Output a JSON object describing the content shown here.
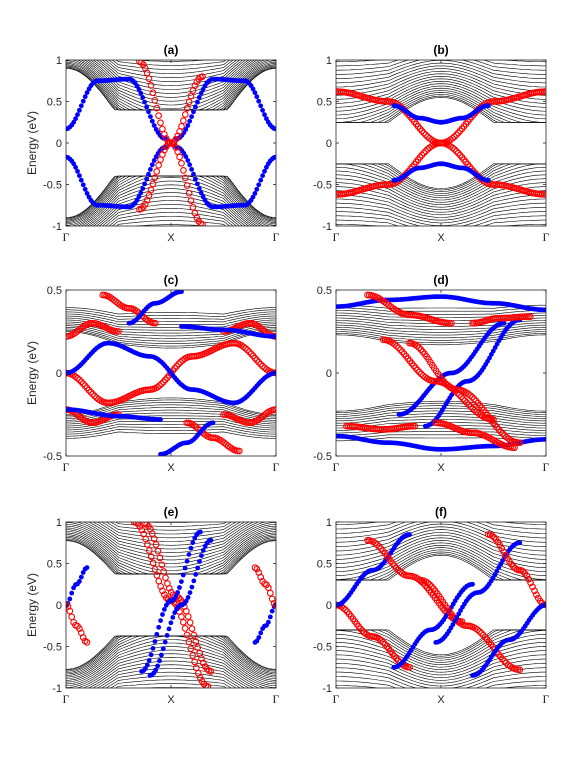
{
  "figure": {
    "chart_data": [
      {
        "type": "line",
        "panel": "(a)",
        "title": "(a)",
        "xlabel": "",
        "ylabel": "Energy (eV)",
        "xticks": [
          "Γ",
          "X",
          "Γ"
        ],
        "xlim": [
          0,
          2
        ],
        "ylim": [
          -1,
          1
        ],
        "yticks": [
          "-1",
          "-0.5",
          "0",
          "0.5",
          "1"
        ],
        "bulk": {
          "center": 0.35,
          "gap": 0.9,
          "bands": 26,
          "spread": 0.8,
          "shape": 0.45,
          "dip": 0.25
        },
        "series": [
          {
            "color": "#0000ff",
            "marker": "filled",
            "x": [
              0,
              0.3,
              0.6,
              0.95
            ],
            "y": [
              0.17,
              0.75,
              0.77,
              0.05
            ]
          },
          {
            "color": "#0000ff",
            "marker": "filled",
            "x": [
              1.05,
              1.4,
              1.7,
              2
            ],
            "y": [
              0.05,
              0.77,
              0.75,
              0.17
            ]
          },
          {
            "color": "#0000ff",
            "marker": "filled",
            "x": [
              0,
              0.3,
              0.6,
              0.95
            ],
            "y": [
              -0.17,
              -0.75,
              -0.77,
              -0.05
            ]
          },
          {
            "color": "#0000ff",
            "marker": "filled",
            "x": [
              1.05,
              1.4,
              1.7,
              2
            ],
            "y": [
              -0.05,
              -0.77,
              -0.75,
              -0.17
            ]
          },
          {
            "color": "#ff0000",
            "marker": "open",
            "x": [
              0.7,
              1.0,
              1.3
            ],
            "y": [
              0.98,
              0.0,
              -0.98
            ]
          },
          {
            "color": "#ff0000",
            "marker": "open",
            "x": [
              0.7,
              1.0,
              1.3
            ],
            "y": [
              -0.8,
              0.0,
              0.8
            ]
          }
        ]
      },
      {
        "type": "line",
        "panel": "(b)",
        "title": "(b)",
        "xlabel": "",
        "ylabel": "",
        "xticks": [
          "Γ",
          "X",
          "Γ"
        ],
        "xlim": [
          0,
          2
        ],
        "ylim": [
          -1,
          1
        ],
        "yticks": [
          "-1",
          "-0.5",
          "0",
          "0.5",
          "1"
        ],
        "bulk": {
          "center": 0.25,
          "gap": 0.6,
          "bands": 22,
          "spread": 0.8,
          "shape": -0.25,
          "dip": 0.1
        },
        "series": [
          {
            "color": "#ff0000",
            "marker": "open",
            "x": [
              0,
              0.5,
              1.0,
              1.5,
              2
            ],
            "y": [
              0.62,
              0.5,
              0.0,
              -0.5,
              -0.62
            ]
          },
          {
            "color": "#ff0000",
            "marker": "open",
            "x": [
              0,
              0.5,
              1.0,
              1.5,
              2
            ],
            "y": [
              -0.62,
              -0.5,
              0.0,
              0.5,
              0.62
            ]
          },
          {
            "color": "#0000ff",
            "marker": "filled",
            "x": [
              0.55,
              0.8,
              1.0
            ],
            "y": [
              0.45,
              0.3,
              0.25
            ]
          },
          {
            "color": "#0000ff",
            "marker": "filled",
            "x": [
              0.55,
              0.8,
              1.0
            ],
            "y": [
              -0.45,
              -0.3,
              -0.25
            ]
          },
          {
            "color": "#0000ff",
            "marker": "filled",
            "x": [
              1.0,
              1.2,
              1.45
            ],
            "y": [
              0.25,
              0.3,
              0.45
            ]
          },
          {
            "color": "#0000ff",
            "marker": "filled",
            "x": [
              1.0,
              1.2,
              1.45
            ],
            "y": [
              -0.25,
              -0.3,
              -0.45
            ]
          }
        ]
      },
      {
        "type": "line",
        "panel": "(c)",
        "title": "(c)",
        "xlabel": "",
        "ylabel": "Energy (eV)",
        "xticks": [
          "Γ",
          "X",
          "Γ"
        ],
        "xlim": [
          0,
          2
        ],
        "ylim": [
          -0.5,
          0.5
        ],
        "yticks": [
          "-0.5",
          "0",
          "0.5"
        ],
        "bulk": {
          "center": 0.3,
          "gap": 0.4,
          "bands": 14,
          "spread": 0.18,
          "shape": 0.05,
          "dip": 0.05
        },
        "series": [
          {
            "color": "#ff0000",
            "marker": "open",
            "x": [
              0,
              0.4,
              0.8,
              1.2,
              1.6,
              2
            ],
            "y": [
              0.0,
              -0.18,
              -0.1,
              0.1,
              0.18,
              0.0
            ]
          },
          {
            "color": "#ff0000",
            "marker": "open",
            "x": [
              0,
              0.25,
              0.5
            ],
            "y": [
              0.22,
              0.3,
              0.25
            ]
          },
          {
            "color": "#ff0000",
            "marker": "open",
            "x": [
              1.5,
              1.75,
              2
            ],
            "y": [
              0.25,
              0.3,
              0.22
            ]
          },
          {
            "color": "#ff0000",
            "marker": "open",
            "x": [
              0,
              0.25,
              0.5
            ],
            "y": [
              -0.22,
              -0.3,
              -0.25
            ]
          },
          {
            "color": "#ff0000",
            "marker": "open",
            "x": [
              1.5,
              1.75,
              2
            ],
            "y": [
              -0.25,
              -0.3,
              -0.22
            ]
          },
          {
            "color": "#ff0000",
            "marker": "open",
            "x": [
              0.35,
              0.6,
              0.85
            ],
            "y": [
              0.47,
              0.39,
              0.3
            ]
          },
          {
            "color": "#ff0000",
            "marker": "open",
            "x": [
              1.15,
              1.4,
              1.65
            ],
            "y": [
              -0.3,
              -0.39,
              -0.47
            ]
          },
          {
            "color": "#0000ff",
            "marker": "filled",
            "x": [
              0,
              0.4,
              0.8,
              1.2,
              1.6,
              2
            ],
            "y": [
              0.0,
              0.18,
              0.1,
              -0.1,
              -0.18,
              0.0
            ]
          },
          {
            "color": "#0000ff",
            "marker": "filled",
            "x": [
              0.6,
              0.85,
              1.1
            ],
            "y": [
              0.3,
              0.42,
              0.49
            ]
          },
          {
            "color": "#0000ff",
            "marker": "filled",
            "x": [
              0.9,
              1.15,
              1.4
            ],
            "y": [
              -0.49,
              -0.42,
              -0.3
            ]
          },
          {
            "color": "#0000ff",
            "marker": "filled",
            "x": [
              1.1,
              1.5,
              2
            ],
            "y": [
              0.28,
              0.26,
              0.22
            ]
          },
          {
            "color": "#0000ff",
            "marker": "filled",
            "x": [
              0,
              0.5,
              0.9
            ],
            "y": [
              -0.22,
              -0.26,
              -0.28
            ]
          }
        ]
      },
      {
        "type": "line",
        "panel": "(d)",
        "title": "(d)",
        "xlabel": "",
        "ylabel": "",
        "xticks": [
          "Γ",
          "X",
          "Γ"
        ],
        "xlim": [
          0,
          2
        ],
        "ylim": [
          -0.5,
          0.5
        ],
        "yticks": [
          "-0.5",
          "0",
          "0.5"
        ],
        "bulk": {
          "center": 0.3,
          "gap": 0.4,
          "bands": 14,
          "spread": 0.2,
          "shape": 0.03,
          "dip": 0.02
        },
        "series": [
          {
            "color": "#0000ff",
            "marker": "filled",
            "x": [
              0,
              0.5,
              1.0,
              1.5,
              2
            ],
            "y": [
              0.4,
              0.44,
              0.46,
              0.42,
              0.38
            ]
          },
          {
            "color": "#0000ff",
            "marker": "filled",
            "x": [
              0,
              0.5,
              1.0,
              1.5,
              2
            ],
            "y": [
              -0.38,
              -0.42,
              -0.46,
              -0.44,
              -0.4
            ]
          },
          {
            "color": "#0000ff",
            "marker": "filled",
            "x": [
              0.6,
              1.1,
              1.6
            ],
            "y": [
              -0.25,
              0.0,
              0.3
            ]
          },
          {
            "color": "#0000ff",
            "marker": "filled",
            "x": [
              0.85,
              1.25,
              1.75
            ],
            "y": [
              -0.32,
              -0.05,
              0.32
            ]
          },
          {
            "color": "#ff0000",
            "marker": "open",
            "x": [
              0.45,
              0.95,
              1.5
            ],
            "y": [
              0.2,
              -0.05,
              -0.28
            ]
          },
          {
            "color": "#ff0000",
            "marker": "open",
            "x": [
              0.7,
              1.15,
              1.75
            ],
            "y": [
              0.18,
              -0.1,
              -0.42
            ]
          },
          {
            "color": "#ff0000",
            "marker": "open",
            "x": [
              0.3,
              0.7,
              1.1
            ],
            "y": [
              0.47,
              0.35,
              0.3
            ]
          },
          {
            "color": "#ff0000",
            "marker": "open",
            "x": [
              1.3,
              1.55,
              1.85
            ],
            "y": [
              0.3,
              0.33,
              0.34
            ]
          },
          {
            "color": "#ff0000",
            "marker": "open",
            "x": [
              0.1,
              0.45,
              0.75
            ],
            "y": [
              -0.32,
              -0.34,
              -0.32
            ]
          },
          {
            "color": "#ff0000",
            "marker": "open",
            "x": [
              0.95,
              1.3,
              1.7
            ],
            "y": [
              -0.3,
              -0.36,
              -0.45
            ]
          }
        ]
      },
      {
        "type": "line",
        "panel": "(e)",
        "title": "(e)",
        "xlabel": "",
        "ylabel": "Energy (eV)",
        "xticks": [
          "Γ",
          "X",
          "Γ"
        ],
        "xlim": [
          0,
          2
        ],
        "ylim": [
          -1,
          1
        ],
        "yticks": [
          "-1",
          "-0.5",
          "0",
          "0.5",
          "1"
        ],
        "bulk": {
          "center": 0.35,
          "gap": 0.85,
          "bands": 26,
          "spread": 0.8,
          "shape": 0.35,
          "dip": 0.2
        },
        "series": [
          {
            "color": "#0000ff",
            "marker": "filled",
            "x": [
              0,
              0.1,
              0.2
            ],
            "y": [
              0.0,
              0.25,
              0.45
            ]
          },
          {
            "color": "#ff0000",
            "marker": "open",
            "x": [
              0,
              0.1,
              0.2
            ],
            "y": [
              0.0,
              -0.25,
              -0.45
            ]
          },
          {
            "color": "#0000ff",
            "marker": "filled",
            "x": [
              1.8,
              1.9,
              2
            ],
            "y": [
              -0.45,
              -0.25,
              0.0
            ]
          },
          {
            "color": "#ff0000",
            "marker": "open",
            "x": [
              1.8,
              1.9,
              2
            ],
            "y": [
              0.45,
              0.25,
              0.0
            ]
          },
          {
            "color": "#ff0000",
            "marker": "open",
            "x": [
              0.65,
              1.0,
              1.35
            ],
            "y": [
              1.0,
              0.05,
              -0.98
            ]
          },
          {
            "color": "#ff0000",
            "marker": "open",
            "x": [
              0.75,
              1.05,
              1.38
            ],
            "y": [
              0.98,
              0.1,
              -0.8
            ]
          },
          {
            "color": "#0000ff",
            "marker": "filled",
            "x": [
              0.72,
              1.0,
              1.28
            ],
            "y": [
              -0.8,
              0.05,
              0.88
            ]
          },
          {
            "color": "#0000ff",
            "marker": "filled",
            "x": [
              0.8,
              1.1,
              1.38
            ],
            "y": [
              -0.85,
              0.0,
              0.78
            ]
          }
        ]
      },
      {
        "type": "line",
        "panel": "(f)",
        "title": "(f)",
        "xlabel": "",
        "ylabel": "",
        "xticks": [
          "Γ",
          "X",
          "Γ"
        ],
        "xlim": [
          0,
          2
        ],
        "ylim": [
          -1,
          1
        ],
        "yticks": [
          "-1",
          "-0.5",
          "0",
          "0.5",
          "1"
        ],
        "bulk": {
          "center": 0.3,
          "gap": 0.7,
          "bands": 22,
          "spread": 0.85,
          "shape": -0.25,
          "dip": 0.1
        },
        "series": [
          {
            "color": "#ff0000",
            "marker": "open",
            "x": [
              0,
              0.35,
              0.7
            ],
            "y": [
              0.0,
              -0.38,
              -0.75
            ]
          },
          {
            "color": "#0000ff",
            "marker": "filled",
            "x": [
              0,
              0.35,
              0.7
            ],
            "y": [
              0.0,
              0.42,
              0.85
            ]
          },
          {
            "color": "#ff0000",
            "marker": "open",
            "x": [
              0.3,
              0.7,
              1.2
            ],
            "y": [
              0.78,
              0.35,
              -0.2
            ]
          },
          {
            "color": "#0000ff",
            "marker": "filled",
            "x": [
              0.55,
              0.9,
              1.3
            ],
            "y": [
              -0.75,
              -0.3,
              0.25
            ]
          },
          {
            "color": "#ff0000",
            "marker": "open",
            "x": [
              0.8,
              1.25,
              1.75
            ],
            "y": [
              0.3,
              -0.25,
              -0.78
            ]
          },
          {
            "color": "#0000ff",
            "marker": "filled",
            "x": [
              0.95,
              1.35,
              1.75
            ],
            "y": [
              -0.45,
              0.15,
              0.75
            ]
          },
          {
            "color": "#ff0000",
            "marker": "open",
            "x": [
              1.45,
              1.75,
              2
            ],
            "y": [
              0.85,
              0.42,
              0.0
            ]
          },
          {
            "color": "#0000ff",
            "marker": "filled",
            "x": [
              1.3,
              1.65,
              2
            ],
            "y": [
              -0.85,
              -0.42,
              0.0
            ]
          }
        ]
      }
    ]
  }
}
